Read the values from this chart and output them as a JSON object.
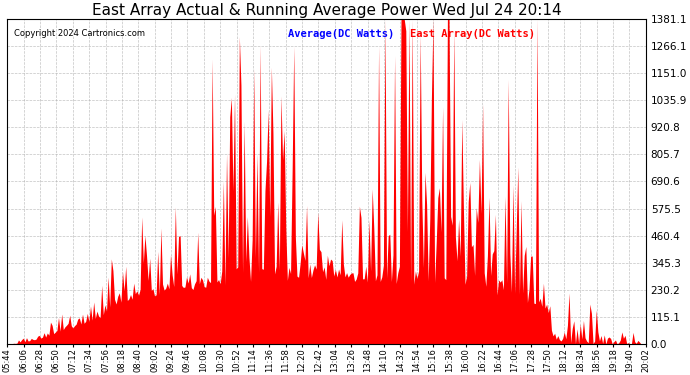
{
  "title": "East Array Actual & Running Average Power Wed Jul 24 20:14",
  "copyright": "Copyright 2024 Cartronics.com",
  "legend_avg": "Average(DC Watts)",
  "legend_east": "East Array(DC Watts)",
  "ymax": 1381.1,
  "ymin": 0.0,
  "yticks": [
    0.0,
    115.1,
    230.2,
    345.3,
    460.4,
    575.5,
    690.6,
    805.7,
    920.8,
    1035.9,
    1151.0,
    1266.1,
    1381.1
  ],
  "ytick_labels": [
    "0.0",
    "115.1",
    "230.2",
    "345.3",
    "460.4",
    "575.5",
    "690.6",
    "805.7",
    "920.8",
    "1035.9",
    "1151.0",
    "1266.1",
    "1381.1"
  ],
  "bg_color": "#ffffff",
  "grid_color": "#aaaaaa",
  "fill_color": "#ff0000",
  "line_color": "#0000ff",
  "title_color": "#000000",
  "copyright_color": "#000000",
  "legend_avg_color": "#0000ff",
  "legend_east_color": "#ff0000",
  "xtick_labels": [
    "05:44",
    "06:06",
    "06:28",
    "06:50",
    "07:12",
    "07:34",
    "07:56",
    "08:18",
    "08:40",
    "09:02",
    "09:24",
    "09:46",
    "10:08",
    "10:30",
    "10:52",
    "11:14",
    "11:36",
    "11:58",
    "12:20",
    "12:42",
    "13:04",
    "13:26",
    "13:48",
    "14:10",
    "14:32",
    "14:54",
    "15:16",
    "15:38",
    "16:00",
    "16:22",
    "16:44",
    "17:06",
    "17:28",
    "17:50",
    "18:12",
    "18:34",
    "18:56",
    "19:18",
    "19:40",
    "20:02"
  ],
  "n_points": 400
}
